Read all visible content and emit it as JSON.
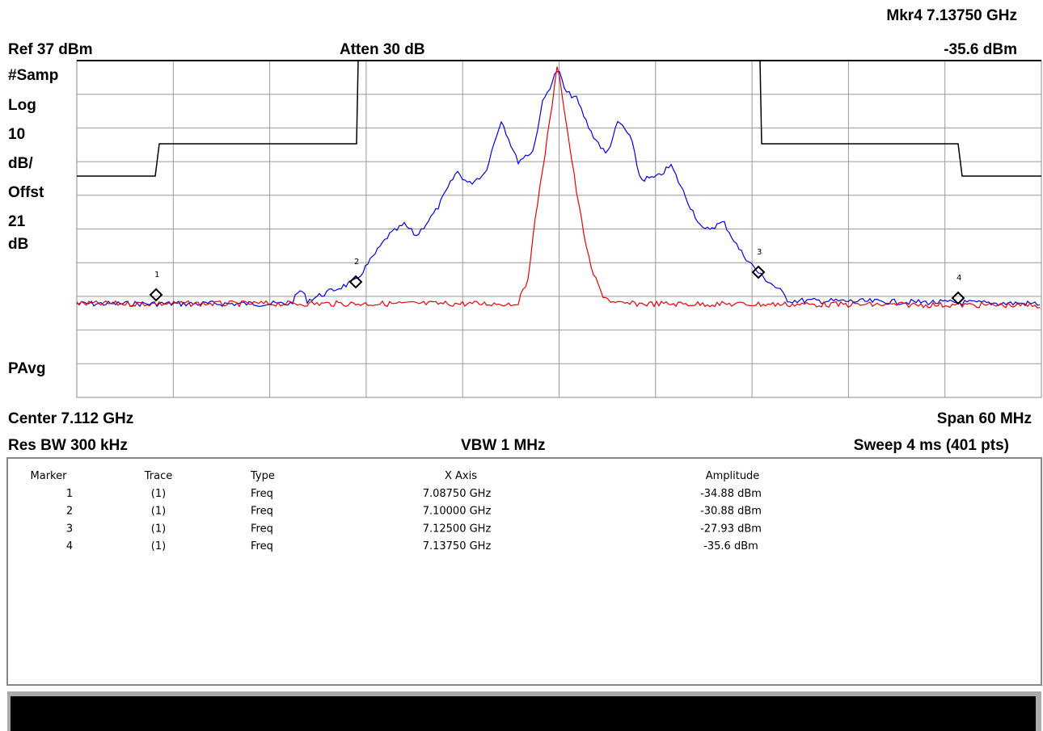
{
  "header": {
    "marker_readout": "Mkr4  7.13750 GHz",
    "marker_amplitude": "-35.6 dBm",
    "ref": "Ref 37 dBm",
    "atten": "Atten 30 dB"
  },
  "left_labels": [
    "#Samp",
    "Log",
    "10",
    "dB/",
    "Offst",
    "21",
    "dB",
    "PAvg"
  ],
  "footer": {
    "center": "Center 7.112 GHz",
    "span": "Span 60 MHz",
    "res_bw": "Res BW 300 kHz",
    "vbw": "VBW 1 MHz",
    "sweep": "Sweep 4 ms (401 pts)"
  },
  "table": {
    "columns": [
      "Marker",
      "Trace",
      "Type",
      "X Axis",
      "Amplitude"
    ],
    "rows": [
      [
        "1",
        "(1)",
        "Freq",
        "7.08750 GHz",
        "-34.88 dBm"
      ],
      [
        "2",
        "(1)",
        "Freq",
        "7.10000 GHz",
        "-30.88 dBm"
      ],
      [
        "3",
        "(1)",
        "Freq",
        "7.12500 GHz",
        "-27.93 dBm"
      ],
      [
        "4",
        "(1)",
        "Freq",
        "7.13750 GHz",
        "-35.6 dBm"
      ]
    ]
  }
}
